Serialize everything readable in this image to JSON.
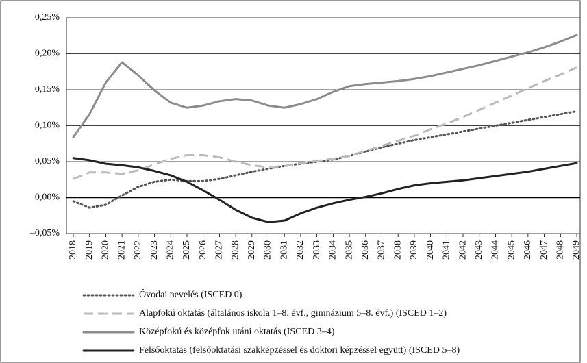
{
  "chart_data": {
    "type": "line",
    "categories": [
      "2018",
      "2019",
      "2020",
      "2021",
      "2022",
      "2023",
      "2024",
      "2025",
      "2026",
      "2027",
      "2028",
      "2029",
      "2030",
      "2031",
      "2032",
      "2033",
      "2034",
      "2035",
      "2036",
      "2037",
      "2038",
      "2039",
      "2040",
      "2041",
      "2042",
      "2043",
      "2044",
      "2045",
      "2046",
      "2047",
      "2048",
      "2049"
    ],
    "ylim": [
      -0.05,
      0.25
    ],
    "yticks": [
      {
        "value": -0.05,
        "label": "–0,05%"
      },
      {
        "value": 0,
        "label": "0,00%"
      },
      {
        "value": 0.05,
        "label": "0,05%"
      },
      {
        "value": 0.1,
        "label": "0,10%"
      },
      {
        "value": 0.15,
        "label": "0,15%"
      },
      {
        "value": 0.2,
        "label": "0,20%"
      },
      {
        "value": 0.25,
        "label": "0,25%"
      }
    ],
    "grid": true,
    "legend": "bottom",
    "series": [
      {
        "name": "Óvodai nevelés (ISCED 0)",
        "color": "#555555",
        "dash": "dotted",
        "values": [
          -0.005,
          -0.014,
          -0.01,
          0.003,
          0.015,
          0.022,
          0.025,
          0.023,
          0.023,
          0.026,
          0.031,
          0.036,
          0.04,
          0.044,
          0.047,
          0.05,
          0.053,
          0.058,
          0.064,
          0.07,
          0.075,
          0.08,
          0.084,
          0.088,
          0.092,
          0.096,
          0.1,
          0.104,
          0.108,
          0.112,
          0.116,
          0.12
        ]
      },
      {
        "name": "Alapfokú oktatás (általános iskola 1–8. évf., gimnázium 5–8. évf.) (ISCED 1–2)",
        "color": "#bbbbbb",
        "dash": "dashed",
        "values": [
          0.026,
          0.035,
          0.035,
          0.033,
          0.038,
          0.046,
          0.054,
          0.059,
          0.059,
          0.056,
          0.05,
          0.045,
          0.042,
          0.044,
          0.048,
          0.051,
          0.054,
          0.058,
          0.065,
          0.072,
          0.079,
          0.086,
          0.095,
          0.103,
          0.112,
          0.122,
          0.132,
          0.142,
          0.152,
          0.162,
          0.171,
          0.181
        ]
      },
      {
        "name": "Középfokú és középfok utáni oktatás (ISCED 3–4)",
        "color": "#8c8c8c",
        "dash": "solid",
        "values": [
          0.084,
          0.116,
          0.16,
          0.188,
          0.17,
          0.149,
          0.132,
          0.125,
          0.128,
          0.134,
          0.137,
          0.135,
          0.128,
          0.125,
          0.13,
          0.137,
          0.147,
          0.155,
          0.158,
          0.16,
          0.162,
          0.165,
          0.169,
          0.174,
          0.179,
          0.184,
          0.19,
          0.196,
          0.202,
          0.209,
          0.217,
          0.226
        ]
      },
      {
        "name": "Felsőoktatás (felsőoktatási szakképzéssel és doktori képzéssel együtt) (ISCED 5–8)",
        "color": "#222222",
        "dash": "solid",
        "values": [
          0.055,
          0.052,
          0.047,
          0.045,
          0.042,
          0.037,
          0.031,
          0.022,
          0.01,
          -0.003,
          -0.017,
          -0.028,
          -0.034,
          -0.032,
          -0.022,
          -0.014,
          -0.008,
          -0.003,
          0.001,
          0.006,
          0.012,
          0.017,
          0.02,
          0.022,
          0.024,
          0.027,
          0.03,
          0.033,
          0.036,
          0.04,
          0.044,
          0.048
        ]
      }
    ]
  }
}
